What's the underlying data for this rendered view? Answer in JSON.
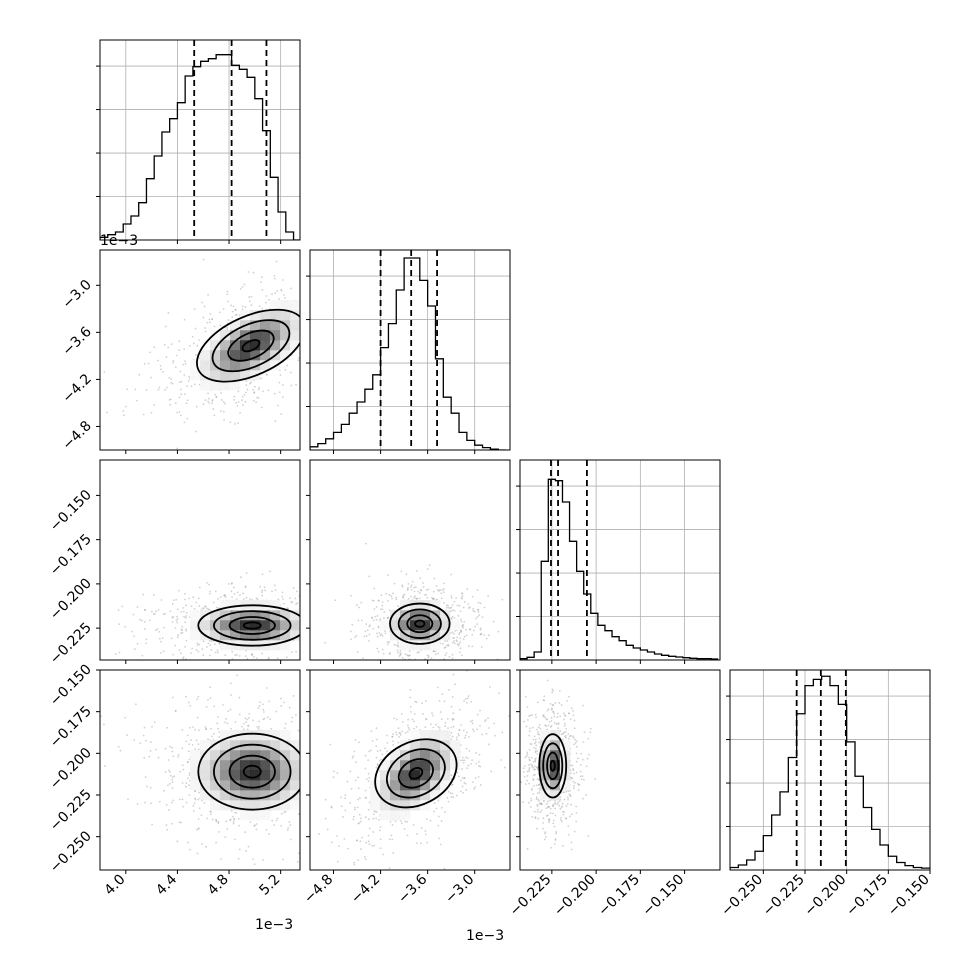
{
  "chart_data": {
    "type": "corner",
    "parameters": 4,
    "quantile_style": "dashed",
    "quantiles": [
      0.16,
      0.5,
      0.84
    ],
    "grid": true,
    "offset_labels": {
      "p0_x": "1e−3",
      "p0_diag_y": "1e−3",
      "p1_x": "1e−3"
    },
    "params": [
      {
        "range": [
          3.8,
          5.35
        ],
        "ticks": [
          4.0,
          4.4,
          4.8,
          5.2
        ],
        "tick_labels": [
          "4.0",
          "4.4",
          "4.8",
          "5.2"
        ],
        "hist_ylim": [
          0,
          1500
        ],
        "hist_edges": [
          3.8,
          3.86,
          3.92,
          3.98,
          4.04,
          4.1,
          4.16,
          4.22,
          4.28,
          4.34,
          4.4,
          4.46,
          4.52,
          4.58,
          4.64,
          4.7,
          4.76,
          4.82,
          4.88,
          4.94,
          5.0,
          5.06,
          5.12,
          5.18,
          5.24,
          5.3,
          5.35
        ],
        "hist_counts": [
          20,
          40,
          60,
          120,
          180,
          280,
          460,
          630,
          810,
          910,
          1030,
          1230,
          1300,
          1340,
          1360,
          1390,
          1390,
          1310,
          1280,
          1220,
          1060,
          820,
          470,
          210,
          60,
          0
        ],
        "quantile_values": [
          4.53,
          4.82,
          5.09
        ]
      },
      {
        "range": [
          -5.1,
          -2.55
        ],
        "ticks": [
          -4.8,
          -4.2,
          -3.6,
          -3.0
        ],
        "tick_labels": [
          "−4.8",
          "−4.2",
          "−3.6",
          "−3.0"
        ],
        "hist_ylim": [
          0,
          1250
        ],
        "hist_edges": [
          -5.1,
          -5.0,
          -4.9,
          -4.8,
          -4.7,
          -4.6,
          -4.5,
          -4.4,
          -4.3,
          -4.2,
          -4.1,
          -4.0,
          -3.9,
          -3.8,
          -3.7,
          -3.6,
          -3.5,
          -3.4,
          -3.3,
          -3.2,
          -3.1,
          -3.0,
          -2.9,
          -2.8,
          -2.7,
          -2.6
        ],
        "hist_counts": [
          20,
          40,
          70,
          110,
          160,
          230,
          300,
          380,
          470,
          640,
          790,
          1000,
          1200,
          1200,
          1060,
          900,
          570,
          330,
          230,
          110,
          60,
          30,
          15,
          5,
          0
        ],
        "quantile_values": [
          -4.2,
          -3.81,
          -3.48
        ]
      },
      {
        "range": [
          -0.243,
          -0.13
        ],
        "ticks": [
          -0.225,
          -0.2,
          -0.175,
          -0.15
        ],
        "tick_labels": [
          "−0.225",
          "−0.200",
          "−0.175",
          "−0.150"
        ],
        "hist_ylim": [
          0,
          3000
        ],
        "hist_edges": [
          -0.243,
          -0.239,
          -0.235,
          -0.231,
          -0.227,
          -0.223,
          -0.219,
          -0.215,
          -0.211,
          -0.207,
          -0.203,
          -0.199,
          -0.195,
          -0.191,
          -0.187,
          -0.183,
          -0.179,
          -0.175,
          -0.171,
          -0.167,
          -0.163,
          -0.159,
          -0.155,
          -0.151,
          -0.147,
          -0.143,
          -0.139,
          -0.135,
          -0.131
        ],
        "hist_counts": [
          20,
          40,
          120,
          1480,
          2710,
          2690,
          2370,
          1780,
          1330,
          990,
          700,
          520,
          440,
          350,
          290,
          220,
          180,
          150,
          120,
          90,
          70,
          55,
          45,
          35,
          25,
          20,
          20,
          15
        ],
        "quantile_values": [
          -0.2255,
          -0.2215,
          -0.2052
        ]
      },
      {
        "range": [
          -0.27,
          -0.15
        ],
        "ticks": [
          -0.25,
          -0.225,
          -0.2,
          -0.175,
          -0.15
        ],
        "tick_labels": [
          "−0.250",
          "−0.225",
          "−0.200",
          "−0.175",
          "−0.150"
        ],
        "hist_ylim": [
          0,
          3200
        ],
        "hist_edges": [
          -0.27,
          -0.265,
          -0.26,
          -0.255,
          -0.25,
          -0.245,
          -0.24,
          -0.235,
          -0.23,
          -0.225,
          -0.22,
          -0.215,
          -0.21,
          -0.205,
          -0.2,
          -0.195,
          -0.19,
          -0.185,
          -0.18,
          -0.175,
          -0.17,
          -0.165,
          -0.16,
          -0.155,
          -0.15
        ],
        "hist_counts": [
          40,
          80,
          160,
          300,
          550,
          880,
          1250,
          1800,
          2500,
          2950,
          3050,
          3100,
          2950,
          2650,
          2050,
          1500,
          1000,
          650,
          400,
          220,
          120,
          70,
          40,
          30
        ],
        "quantile_values": [
          -0.23,
          -0.2155,
          -0.2005
        ]
      }
    ],
    "densities": [
      {
        "row": 1,
        "col": 0,
        "center": [
          4.97,
          -3.77
        ],
        "spread": [
          0.2,
          0.25
        ],
        "tilt": 0.6
      },
      {
        "row": 2,
        "col": 0,
        "center": [
          4.98,
          -0.2235
        ],
        "spread": [
          0.22,
          0.006
        ],
        "tilt": 0.0
      },
      {
        "row": 2,
        "col": 1,
        "center": [
          -3.7,
          -0.2225
        ],
        "spread": [
          0.2,
          0.006
        ],
        "tilt": 0.0
      },
      {
        "row": 3,
        "col": 0,
        "center": [
          4.98,
          -0.211
        ],
        "spread": [
          0.22,
          0.012
        ],
        "tilt": 0.0
      },
      {
        "row": 3,
        "col": 1,
        "center": [
          -3.75,
          -0.212
        ],
        "spread": [
          0.25,
          0.012
        ],
        "tilt": 0.5
      },
      {
        "row": 3,
        "col": 2,
        "center": [
          -0.2245,
          -0.2075
        ],
        "spread": [
          0.004,
          0.01
        ],
        "tilt": 0.0
      }
    ]
  }
}
